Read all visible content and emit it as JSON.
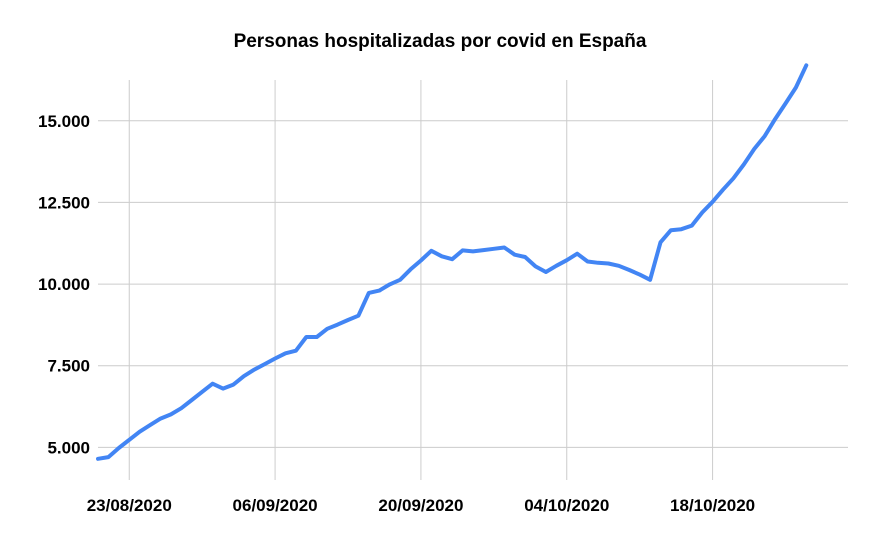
{
  "chart_data": {
    "type": "line",
    "title": "Personas hospitalizadas por covid en España",
    "xlabel": "",
    "ylabel": "",
    "grid": true,
    "legend": "none",
    "colors": {
      "line": "#4285f4",
      "grid": "#cccccc",
      "text": "#000000"
    },
    "ylim": [
      4000,
      16800
    ],
    "xlim": [
      "2020-08-20",
      "2020-10-31"
    ],
    "y_ticks": [
      {
        "value": 5000,
        "label": "5.000"
      },
      {
        "value": 7500,
        "label": "7.500"
      },
      {
        "value": 10000,
        "label": "10.000"
      },
      {
        "value": 12500,
        "label": "12.500"
      },
      {
        "value": 15000,
        "label": "15.000"
      }
    ],
    "x_ticks": [
      {
        "value": "2020-08-23",
        "label": "23/08/2020"
      },
      {
        "value": "2020-09-06",
        "label": "06/09/2020"
      },
      {
        "value": "2020-09-20",
        "label": "20/09/2020"
      },
      {
        "value": "2020-10-04",
        "label": "04/10/2020"
      },
      {
        "value": "2020-10-18",
        "label": "18/10/2020"
      }
    ],
    "series": [
      {
        "x": [
          "2020-08-20",
          "2020-08-21",
          "2020-08-22",
          "2020-08-23",
          "2020-08-24",
          "2020-08-25",
          "2020-08-26",
          "2020-08-27",
          "2020-08-28",
          "2020-08-29",
          "2020-08-30",
          "2020-08-31",
          "2020-09-01",
          "2020-09-02",
          "2020-09-03",
          "2020-09-04",
          "2020-09-05",
          "2020-09-06",
          "2020-09-07",
          "2020-09-08",
          "2020-09-09",
          "2020-09-10",
          "2020-09-11",
          "2020-09-12",
          "2020-09-13",
          "2020-09-14",
          "2020-09-15",
          "2020-09-16",
          "2020-09-17",
          "2020-09-18",
          "2020-09-19",
          "2020-09-20",
          "2020-09-21",
          "2020-09-22",
          "2020-09-23",
          "2020-09-24",
          "2020-09-25",
          "2020-09-26",
          "2020-09-27",
          "2020-09-28",
          "2020-09-29",
          "2020-09-30",
          "2020-10-01",
          "2020-10-02",
          "2020-10-03",
          "2020-10-04",
          "2020-10-05",
          "2020-10-06",
          "2020-10-07",
          "2020-10-08",
          "2020-10-09",
          "2020-10-10",
          "2020-10-11",
          "2020-10-12",
          "2020-10-13",
          "2020-10-14",
          "2020-10-15",
          "2020-10-16",
          "2020-10-17",
          "2020-10-18",
          "2020-10-19",
          "2020-10-20",
          "2020-10-21",
          "2020-10-22",
          "2020-10-23",
          "2020-10-24",
          "2020-10-25",
          "2020-10-26",
          "2020-10-27"
        ],
        "values": [
          4650,
          4700,
          4980,
          5230,
          5480,
          5680,
          5880,
          6010,
          6200,
          6450,
          6700,
          6950,
          6800,
          6920,
          7180,
          7380,
          7550,
          7720,
          7880,
          7960,
          8380,
          8380,
          8630,
          8760,
          8900,
          9030,
          9730,
          9800,
          9990,
          10130,
          10450,
          10720,
          11020,
          10850,
          10760,
          11030,
          11000,
          11040,
          11080,
          11120,
          10900,
          10830,
          10540,
          10370,
          10560,
          10730,
          10930,
          10690,
          10650,
          10630,
          10560,
          10430,
          10290,
          10130,
          11280,
          11650,
          11680,
          11790,
          12190,
          12520,
          12890,
          13240,
          13660,
          14140,
          14530,
          15050,
          15530,
          16020,
          16700
        ]
      }
    ]
  }
}
